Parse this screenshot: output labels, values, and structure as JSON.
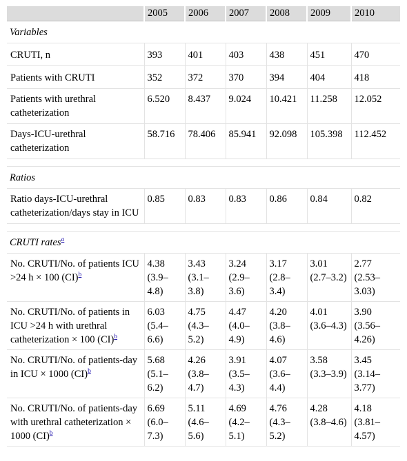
{
  "header": {
    "years": [
      "2005",
      "2006",
      "2007",
      "2008",
      "2009",
      "2010"
    ]
  },
  "sections": {
    "variables": "Variables",
    "ratios": "Ratios",
    "cruti_rates": "CRUTI rates",
    "cruti_rates_fn": "a"
  },
  "rows": [
    {
      "label": "CRUTI, n",
      "values": [
        "393",
        "401",
        "403",
        "438",
        "451",
        "470"
      ]
    },
    {
      "label": "Patients with CRUTI",
      "values": [
        "352",
        "372",
        "370",
        "394",
        "404",
        "418"
      ]
    },
    {
      "label": "Patients with urethral catheterization",
      "values": [
        "6.520",
        "8.437",
        "9.024",
        "10.421",
        "11.258",
        "12.052"
      ]
    },
    {
      "label": "Days-ICU-urethral catheterization",
      "values": [
        "58.716",
        "78.406",
        "85.941",
        "92.098",
        "105.398",
        "112.452"
      ]
    },
    {
      "label": "Ratio days-ICU-urethral catheterization/days stay in ICU",
      "values": [
        "0.85",
        "0.83",
        "0.83",
        "0.86",
        "0.84",
        "0.82"
      ]
    },
    {
      "label": "No. CRUTI/No. of patients ICU >24 h × 100 (CI)",
      "fn": "b",
      "values": [
        "4.38 (3.9–4.8)",
        "3.43 (3.1–3.8)",
        "3.24 (2.9–3.6)",
        "3.17 (2.8–3.4)",
        "3.01 (2.7–3.2)",
        "2.77 (2.53–3.03)"
      ]
    },
    {
      "label": "No. CRUTI/No. of patients in ICU >24 h with urethral catheterization × 100 (CI)",
      "fn": "b",
      "values": [
        "6.03 (5.4–6.6)",
        "4.75 (4.3–5.2)",
        "4.47 (4.0–4.9)",
        "4.20 (3.8–4.6)",
        "4.01 (3.6–4.3)",
        "3.90 (3.56–4.26)"
      ]
    },
    {
      "label": "No. CRUTI/No. of patients-day in ICU × 1000 (CI)",
      "fn": "b",
      "values": [
        "5.68 (5.1–6.2)",
        "4.26 (3.8–4.7)",
        "3.91 (3.5–4.3)",
        "4.07 (3.6–4.4)",
        "3.58 (3.3–3.9)",
        "3.45 (3.14–3.77)"
      ]
    },
    {
      "label": "No. CRUTI/No. of patients-day with urethral catheterization × 1000 (CI)",
      "fn": "b",
      "values": [
        "6.69 (6.0–7.3)",
        "5.11 (4.6–5.6)",
        "4.69 (4.2–5.1)",
        "4.76 (4.3–5.2)",
        "4.28 (3.8–4.6)",
        "4.18 (3.81–4.57)"
      ]
    }
  ]
}
